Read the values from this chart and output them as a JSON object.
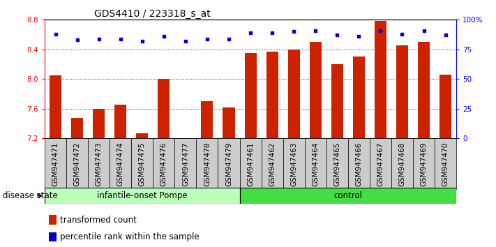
{
  "title": "GDS4410 / 223318_s_at",
  "samples": [
    "GSM947471",
    "GSM947472",
    "GSM947473",
    "GSM947474",
    "GSM947475",
    "GSM947476",
    "GSM947477",
    "GSM947478",
    "GSM947479",
    "GSM947461",
    "GSM947462",
    "GSM947463",
    "GSM947464",
    "GSM947465",
    "GSM947466",
    "GSM947467",
    "GSM947468",
    "GSM947469",
    "GSM947470"
  ],
  "red_values": [
    8.05,
    7.48,
    7.6,
    7.65,
    7.27,
    8.0,
    7.2,
    7.7,
    7.62,
    8.35,
    8.37,
    8.4,
    8.5,
    8.2,
    8.3,
    8.78,
    8.45,
    8.5,
    8.06
  ],
  "blue_values": [
    88,
    83,
    84,
    84,
    82,
    86,
    82,
    84,
    84,
    89,
    89,
    90,
    91,
    87,
    86,
    91,
    88,
    91,
    87
  ],
  "group1_label": "infantile-onset Pompe",
  "group2_label": "control",
  "group1_count": 9,
  "group2_count": 10,
  "ylim_left": [
    7.2,
    8.8
  ],
  "ylim_right": [
    0,
    100
  ],
  "yticks_left": [
    7.2,
    7.6,
    8.0,
    8.4,
    8.8
  ],
  "yticks_right": [
    0,
    25,
    50,
    75,
    100
  ],
  "ytick_labels_right": [
    "0",
    "25",
    "50",
    "75",
    "100%"
  ],
  "bar_color": "#cc2200",
  "dot_color": "#0000cc",
  "group1_bg": "#bbffbb",
  "group2_bg": "#44dd44",
  "tick_bg": "#cccccc",
  "legend_red_label": "transformed count",
  "legend_blue_label": "percentile rank within the sample",
  "disease_state_label": "disease state",
  "title_fontsize": 10,
  "tick_fontsize": 7.5,
  "label_fontsize": 8.5,
  "grid_lines": [
    7.6,
    8.0,
    8.4
  ]
}
